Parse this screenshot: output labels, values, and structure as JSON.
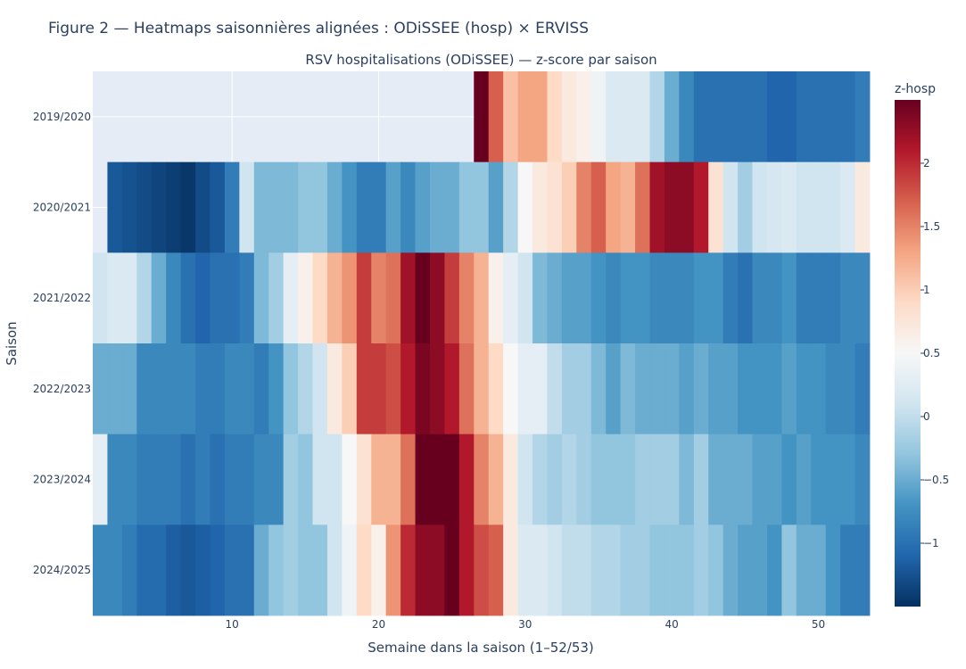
{
  "figure": {
    "title": "Figure 2 — Heatmaps saisonnières alignées : ODiSSEE (hosp) × ERVISS"
  },
  "chart_data": {
    "type": "heatmap",
    "title": "RSV hospitalisations (ODiSSEE) — z-score par saison",
    "xlabel": "Semaine dans la saison (1–52/53)",
    "ylabel": "Saison",
    "x_range": [
      1,
      53
    ],
    "x_ticks": [
      10,
      20,
      30,
      40,
      50
    ],
    "seasons": [
      "2019/2020",
      "2020/2021",
      "2021/2022",
      "2022/2023",
      "2023/2024",
      "2024/2025"
    ],
    "colorscale": "RdBu reversed",
    "colorbar": {
      "title": "z-hosp",
      "range": [
        -1.5,
        2.5
      ],
      "ticks": [
        -1,
        -0.5,
        0,
        0.5,
        1,
        1.5,
        2
      ],
      "tick_labels": [
        "−1",
        "−0.5",
        "0",
        "0.5",
        "1",
        "1.5",
        "2"
      ]
    },
    "weeks": [
      1,
      2,
      3,
      4,
      5,
      6,
      7,
      8,
      9,
      10,
      11,
      12,
      13,
      14,
      15,
      16,
      17,
      18,
      19,
      20,
      21,
      22,
      23,
      24,
      25,
      26,
      27,
      28,
      29,
      30,
      31,
      32,
      33,
      34,
      35,
      36,
      37,
      38,
      39,
      40,
      41,
      42,
      43,
      44,
      45,
      46,
      47,
      48,
      49,
      50,
      51,
      52,
      53
    ],
    "z": [
      [
        null,
        null,
        null,
        null,
        null,
        null,
        null,
        null,
        null,
        null,
        null,
        null,
        null,
        null,
        null,
        null,
        null,
        null,
        null,
        null,
        null,
        null,
        null,
        null,
        null,
        null,
        2.5,
        1.7,
        1.1,
        1.3,
        1.3,
        0.9,
        0.7,
        0.6,
        0.4,
        0.2,
        0.2,
        0.2,
        -0.1,
        -0.5,
        -0.8,
        -1.0,
        -1.0,
        -1.0,
        -1.0,
        -1.0,
        -1.1,
        -1.1,
        -1.0,
        -1.0,
        -1.0,
        -1.0,
        -0.9
      ],
      [
        null,
        -1.2,
        -1.25,
        -1.3,
        -1.35,
        -1.4,
        -1.45,
        -1.3,
        -1.2,
        -0.9,
        0.1,
        -0.4,
        -0.4,
        -0.4,
        -0.3,
        -0.3,
        -0.5,
        -0.7,
        -0.9,
        -0.9,
        -0.6,
        -0.8,
        -0.6,
        -0.5,
        -0.5,
        -0.3,
        -0.3,
        -0.6,
        -0.1,
        0.5,
        0.7,
        0.8,
        1.0,
        1.5,
        1.7,
        1.3,
        1.2,
        1.6,
        2.2,
        2.3,
        2.3,
        2.1,
        0.8,
        0.1,
        -0.2,
        0.1,
        0.15,
        0.2,
        0.1,
        0.1,
        0.1,
        0.2,
        0.7
      ],
      [
        0.1,
        0.2,
        0.2,
        -0.1,
        -0.5,
        -0.8,
        -1.0,
        -1.1,
        -1.0,
        -1.0,
        -0.9,
        -0.4,
        -0.2,
        0.3,
        0.6,
        0.9,
        1.2,
        1.4,
        1.9,
        1.5,
        1.6,
        2.2,
        2.6,
        2.3,
        1.9,
        1.5,
        1.2,
        0.6,
        0.3,
        0.1,
        -0.4,
        -0.5,
        -0.6,
        -0.6,
        -0.7,
        -0.8,
        -0.7,
        -0.7,
        -0.8,
        -0.8,
        -0.8,
        -0.7,
        -0.7,
        -0.9,
        -1.0,
        -0.8,
        -0.8,
        -0.7,
        -0.9,
        -0.9,
        -0.9,
        -0.8,
        -0.8
      ],
      [
        -0.5,
        -0.5,
        -0.5,
        -0.8,
        -0.8,
        -0.8,
        -0.8,
        -0.9,
        -0.9,
        -0.8,
        -0.8,
        -0.9,
        -0.7,
        -0.3,
        -0.1,
        0.1,
        0.7,
        1.0,
        1.9,
        1.9,
        1.8,
        2.1,
        2.4,
        2.3,
        2.1,
        1.6,
        1.2,
        0.9,
        0.5,
        0.3,
        0.3,
        0.0,
        -0.2,
        -0.2,
        -0.4,
        -0.6,
        -0.4,
        -0.5,
        -0.5,
        -0.5,
        -0.6,
        -0.5,
        -0.6,
        -0.6,
        -0.7,
        -0.7,
        -0.7,
        -0.6,
        -0.7,
        -0.7,
        -0.8,
        -0.8,
        -0.9
      ],
      [
        0.3,
        -0.8,
        -0.8,
        -0.9,
        -0.9,
        -0.9,
        -1.0,
        -0.9,
        -1.0,
        -0.9,
        -0.9,
        -0.8,
        -0.8,
        -0.2,
        -0.3,
        0.1,
        0.1,
        0.5,
        0.8,
        1.2,
        1.2,
        1.6,
        2.8,
        2.8,
        2.5,
        2.1,
        1.5,
        1.2,
        0.7,
        0.1,
        -0.1,
        -0.2,
        -0.1,
        -0.2,
        -0.3,
        -0.3,
        -0.3,
        -0.2,
        -0.2,
        -0.2,
        -0.4,
        -0.2,
        -0.5,
        -0.5,
        -0.5,
        -0.6,
        -0.6,
        -0.7,
        -0.6,
        -0.7,
        -0.7,
        -0.7,
        -0.8
      ],
      [
        -0.8,
        -0.8,
        -0.9,
        -1.05,
        -1.05,
        -1.15,
        -1.2,
        -1.15,
        -1.1,
        -1.0,
        -1.0,
        -0.5,
        -0.3,
        -0.2,
        -0.3,
        -0.3,
        0.1,
        0.4,
        0.9,
        0.6,
        1.4,
        2.0,
        2.3,
        2.3,
        2.5,
        2.1,
        1.8,
        1.7,
        0.7,
        0.2,
        0.2,
        0.1,
        0.0,
        0.0,
        -0.1,
        -0.1,
        -0.2,
        -0.2,
        -0.3,
        -0.3,
        -0.3,
        -0.2,
        -0.3,
        -0.5,
        -0.6,
        -0.6,
        -0.7,
        -0.3,
        -0.5,
        -0.5,
        -0.7,
        -0.9,
        -0.9
      ]
    ]
  }
}
